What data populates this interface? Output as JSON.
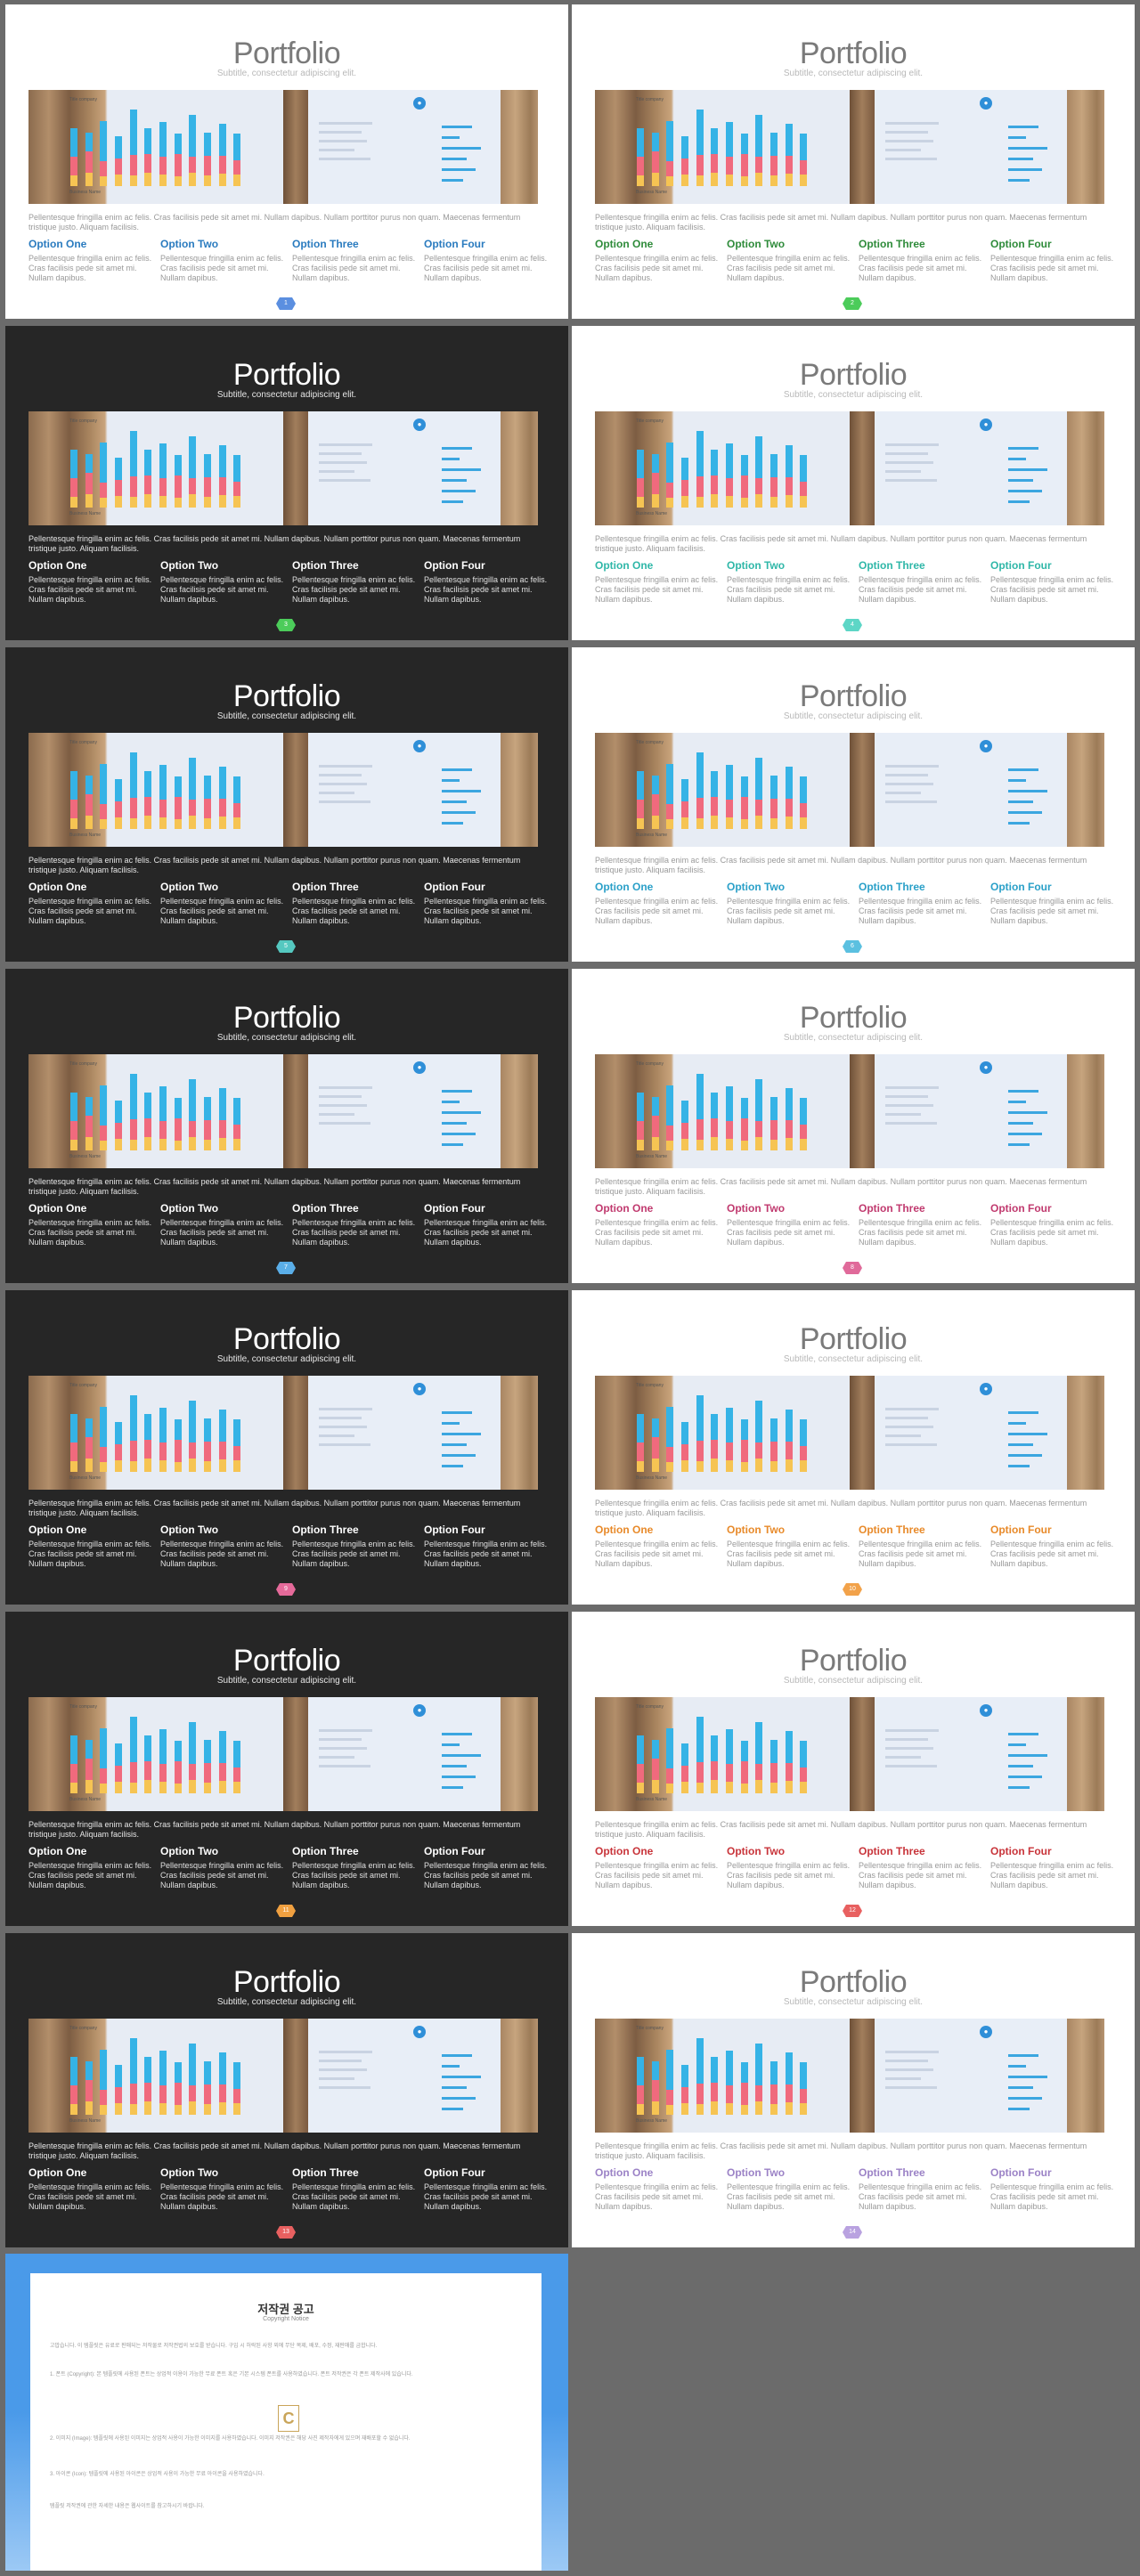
{
  "slide": {
    "title": "Portfolio",
    "subtitle": "Subtitle, consectetur adipiscing elit.",
    "paragraph": "Pellentesque fringilla enim ac felis. Cras facilisis pede sit amet mi. Nullam dapibus. Nullam porttitor purus non quam. Maecenas fermentum tristique justo. Aliquam facilisis.",
    "options": [
      {
        "heading": "Option One",
        "text": "Pellentesque fringilla enim ac felis. Cras facilisis pede sit amet mi. Nullam dapibus."
      },
      {
        "heading": "Option Two",
        "text": "Pellentesque fringilla enim ac felis. Cras facilisis pede sit amet mi. Nullam dapibus."
      },
      {
        "heading": "Option Three",
        "text": "Pellentesque fringilla enim ac felis. Cras facilisis pede sit amet mi. Nullam dapibus."
      },
      {
        "heading": "Option Four",
        "text": "Pellentesque fringilla enim ac felis. Cras facilisis pede sit amet mi. Nullam dapibus."
      }
    ]
  },
  "slides": [
    {
      "page": "1",
      "theme": "light",
      "accent": "#2a7bbf",
      "badge": "#5b8fe0"
    },
    {
      "page": "2",
      "theme": "light",
      "accent": "#2e8b3a",
      "badge": "#4ccc5a"
    },
    {
      "page": "3",
      "theme": "dark",
      "accent": "#ffffff",
      "badge": "#4ccc5a"
    },
    {
      "page": "4",
      "theme": "light",
      "accent": "#2fb7a8",
      "badge": "#5dd6c6"
    },
    {
      "page": "5",
      "theme": "dark",
      "accent": "#ffffff",
      "badge": "#55c8c0"
    },
    {
      "page": "6",
      "theme": "light",
      "accent": "#2aa0c8",
      "badge": "#5bc0e0"
    },
    {
      "page": "7",
      "theme": "dark",
      "accent": "#ffffff",
      "badge": "#5aaee8"
    },
    {
      "page": "8",
      "theme": "light",
      "accent": "#c0396e",
      "badge": "#e06a9a"
    },
    {
      "page": "9",
      "theme": "dark",
      "accent": "#ffffff",
      "badge": "#e56a9a"
    },
    {
      "page": "10",
      "theme": "light",
      "accent": "#e88a2a",
      "badge": "#f2a24a"
    },
    {
      "page": "11",
      "theme": "dark",
      "accent": "#ffffff",
      "badge": "#f0a040"
    },
    {
      "page": "12",
      "theme": "light",
      "accent": "#c8343a",
      "badge": "#e86060"
    },
    {
      "page": "13",
      "theme": "dark",
      "accent": "#ffffff",
      "badge": "#e86060"
    },
    {
      "page": "14",
      "theme": "light",
      "accent": "#9b82c6",
      "badge": "#b9a2e0"
    }
  ],
  "photo_chart": {
    "label_top": "Title company",
    "label_bottom": "Business Name",
    "stacks": [
      [
        40,
        25,
        15
      ],
      [
        25,
        30,
        18
      ],
      [
        55,
        20,
        14
      ],
      [
        30,
        22,
        16
      ],
      [
        62,
        28,
        15
      ],
      [
        35,
        26,
        18
      ],
      [
        48,
        24,
        16
      ],
      [
        28,
        30,
        14
      ],
      [
        58,
        22,
        18
      ],
      [
        32,
        26,
        15
      ],
      [
        44,
        24,
        17
      ],
      [
        36,
        20,
        16
      ]
    ]
  },
  "copyright": {
    "title": "저작권 공고",
    "subtitle": "Copyright Notice",
    "logo_letter": "C",
    "paragraphs": [
      "고맙습니다. 이 템플릿은 유료로 판매되는 저작물로 저작권법의 보호를 받습니다. 구입 시 허락된 사항 외에 무단 복제, 배포, 수정, 재판매를 금합니다.",
      "1. 폰트 (Copyright): 본 템플릿에 사용된 폰트는 상업적 이용이 가능한 무료 폰트 혹은 기본 시스템 폰트를 사용하였습니다. 폰트 저작권은 각 폰트 제작사에 있습니다.",
      "2. 이미지 (Image): 템플릿에 사용된 이미지는 상업적 사용이 가능한 이미지를 사용하였습니다. 이미지 저작권은 해당 사진 제작자에게 있으며 재배포할 수 없습니다.",
      "3. 아이콘 (Icon): 템플릿에 사용된 아이콘은 상업적 사용이 가능한 무료 아이콘을 사용하였습니다.",
      "템플릿 저작권에 관한 자세한 내용은 웹사이트를 참고하시기 바랍니다."
    ]
  }
}
